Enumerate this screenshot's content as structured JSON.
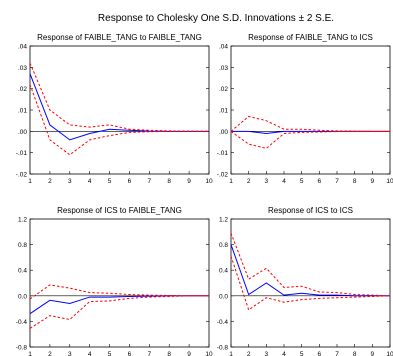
{
  "title": "Response to Cholesky One S.D. Innovations ± 2 S.E.",
  "colors": {
    "response": "#0000ff",
    "band": "#ff0000",
    "zero": "#000000",
    "frame": "#000000"
  },
  "chart_data": [
    {
      "type": "line",
      "title": "Response of FAIBLE_TANG to FAIBLE_TANG",
      "x": [
        1,
        2,
        3,
        4,
        5,
        6,
        7,
        8,
        9,
        10
      ],
      "xlim": [
        1,
        10
      ],
      "ylim": [
        -0.02,
        0.04
      ],
      "yticks": [
        -0.02,
        -0.01,
        0.0,
        0.01,
        0.02,
        0.03,
        0.04
      ],
      "ytick_labels": [
        "-.02",
        "-.01",
        ".00",
        ".01",
        ".02",
        ".03",
        ".04"
      ],
      "series": [
        {
          "role": "response",
          "values": [
            0.027,
            0.003,
            -0.004,
            -0.001,
            0.001,
            0.0005,
            0.0001,
            0.0,
            0.0,
            0.0
          ]
        },
        {
          "role": "upper",
          "values": [
            0.032,
            0.01,
            0.003,
            0.002,
            0.003,
            0.001,
            0.0005,
            0.0002,
            0.0001,
            0.0
          ]
        },
        {
          "role": "lower",
          "values": [
            0.022,
            -0.004,
            -0.011,
            -0.004,
            -0.002,
            -0.0005,
            -0.0002,
            0.0,
            0.0,
            0.0
          ]
        }
      ]
    },
    {
      "type": "line",
      "title": "Response of FAIBLE_TANG to ICS",
      "x": [
        1,
        2,
        3,
        4,
        5,
        6,
        7,
        8,
        9,
        10
      ],
      "xlim": [
        1,
        10
      ],
      "ylim": [
        -0.02,
        0.04
      ],
      "yticks": [
        -0.02,
        -0.01,
        0.0,
        0.01,
        0.02,
        0.03,
        0.04
      ],
      "ytick_labels": [
        "-.02",
        "-.01",
        ".00",
        ".01",
        ".02",
        ".03",
        ".04"
      ],
      "series": [
        {
          "role": "response",
          "values": [
            0.0,
            0.0,
            -0.001,
            0.0,
            0.0,
            0.0,
            0.0,
            0.0,
            0.0,
            0.0
          ]
        },
        {
          "role": "upper",
          "values": [
            0.0,
            0.007,
            0.005,
            0.001,
            0.001,
            0.0005,
            0.0002,
            0.0001,
            0.0,
            0.0
          ]
        },
        {
          "role": "lower",
          "values": [
            0.0,
            -0.006,
            -0.008,
            -0.001,
            -0.0005,
            -0.0003,
            -0.0001,
            0.0,
            0.0,
            0.0
          ]
        }
      ]
    },
    {
      "type": "line",
      "title": "Response of ICS to FAIBLE_TANG",
      "x": [
        1,
        2,
        3,
        4,
        5,
        6,
        7,
        8,
        9,
        10
      ],
      "xlim": [
        1,
        10
      ],
      "ylim": [
        -0.8,
        1.2
      ],
      "yticks": [
        -0.8,
        -0.4,
        0.0,
        0.4,
        0.8,
        1.2
      ],
      "ytick_labels": [
        "-0.8",
        "-0.4",
        "0.0",
        "0.4",
        "0.8",
        "1.2"
      ],
      "series": [
        {
          "role": "response",
          "values": [
            -0.28,
            -0.07,
            -0.12,
            -0.02,
            -0.02,
            -0.01,
            -0.005,
            0.0,
            0.0,
            0.0
          ]
        },
        {
          "role": "upper",
          "values": [
            -0.05,
            0.17,
            0.12,
            0.05,
            0.04,
            0.02,
            0.01,
            0.005,
            0.0,
            0.0
          ]
        },
        {
          "role": "lower",
          "values": [
            -0.51,
            -0.31,
            -0.37,
            -0.09,
            -0.08,
            -0.04,
            -0.02,
            -0.01,
            0.0,
            0.0
          ]
        }
      ]
    },
    {
      "type": "line",
      "title": "Response of ICS to ICS",
      "x": [
        1,
        2,
        3,
        4,
        5,
        6,
        7,
        8,
        9,
        10
      ],
      "xlim": [
        1,
        10
      ],
      "ylim": [
        -0.8,
        1.2
      ],
      "yticks": [
        -0.8,
        -0.4,
        0.0,
        0.4,
        0.8,
        1.2
      ],
      "ytick_labels": [
        "-0.8",
        "-0.4",
        "0.0",
        "0.4",
        "0.8",
        "1.2"
      ],
      "series": [
        {
          "role": "response",
          "values": [
            0.8,
            0.02,
            0.2,
            0.01,
            0.04,
            0.01,
            0.01,
            0.0,
            0.0,
            0.0
          ]
        },
        {
          "role": "upper",
          "values": [
            0.98,
            0.26,
            0.43,
            0.13,
            0.15,
            0.06,
            0.05,
            0.02,
            0.01,
            0.0
          ]
        },
        {
          "role": "lower",
          "values": [
            0.62,
            -0.22,
            -0.03,
            -0.1,
            -0.06,
            -0.04,
            -0.03,
            -0.02,
            -0.01,
            0.0
          ]
        }
      ]
    }
  ]
}
